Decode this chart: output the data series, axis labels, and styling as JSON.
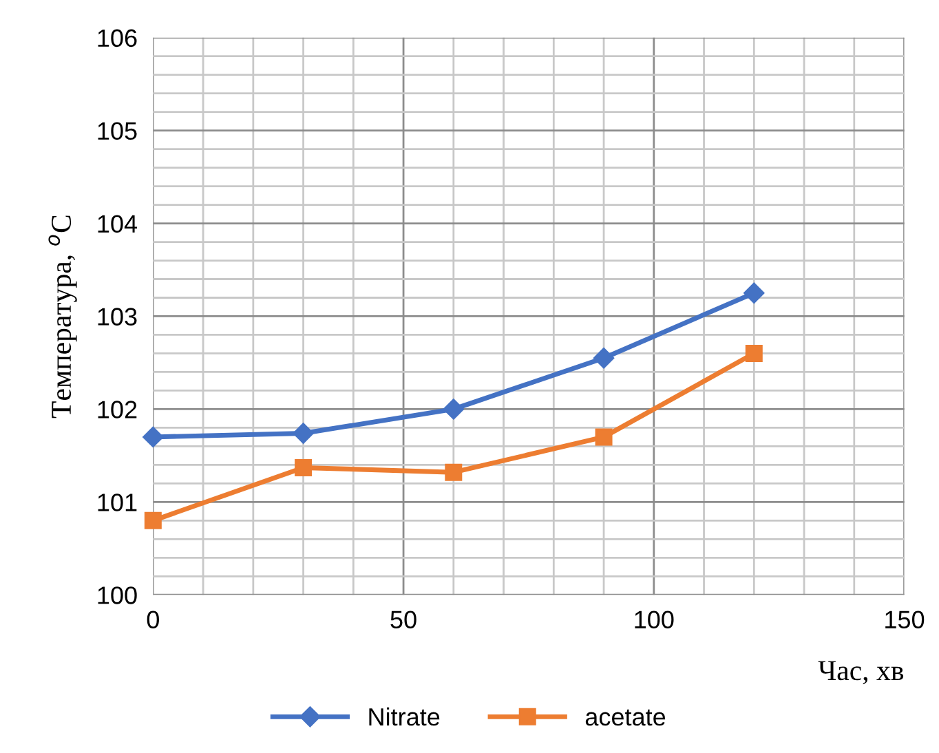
{
  "chart_data": {
    "type": "line",
    "xlabel": "Час, хв",
    "ylabel": "Температура, $^{o}$C",
    "x": [
      0,
      30,
      60,
      90,
      120
    ],
    "series": [
      {
        "name": "Nitrate",
        "color": "#4472c4",
        "marker": "diamond",
        "values": [
          101.7,
          101.74,
          102.0,
          102.55,
          103.25
        ]
      },
      {
        "name": "acetate",
        "color": "#ed7d31",
        "marker": "square",
        "values": [
          100.8,
          101.37,
          101.32,
          101.7,
          102.6
        ]
      }
    ],
    "xlim": [
      0,
      150
    ],
    "xticks": [
      0,
      50,
      100,
      150
    ],
    "ylim": [
      100,
      106
    ],
    "yticks": [
      100,
      101,
      102,
      103,
      104,
      105,
      106
    ],
    "grid": true,
    "legend": "bottom",
    "line_style": "solid"
  }
}
